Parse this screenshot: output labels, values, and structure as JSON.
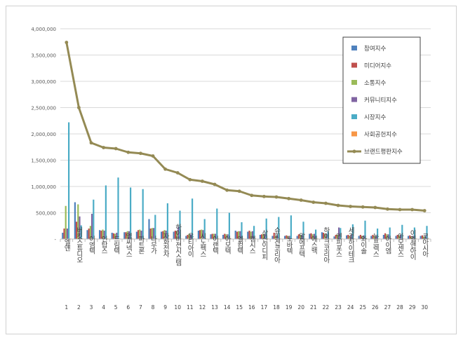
{
  "chart_data": {
    "type": "bar+line",
    "title": "",
    "xlabel": "",
    "ylabel": "",
    "ylim": [
      0,
      4000000
    ],
    "yticks": [
      0,
      500000,
      1000000,
      1500000,
      2000000,
      2500000,
      3000000,
      3500000,
      4000000
    ],
    "ytick_labels": [
      "-",
      "500,000",
      "1,000,000",
      "1,500,000",
      "2,000,000",
      "2,500,000",
      "3,000,000",
      "3,500,000",
      "4,000,000"
    ],
    "legend_position": "top-right",
    "categories": [
      "엘앤",
      "버킷스튜디오",
      "이엠텍",
      "인탑스",
      "드림텍",
      "엠씨넥스",
      "파트론",
      "나무가",
      "자화전자",
      "하이비젼시스템",
      "유티아이",
      "시노펙스",
      "이랜텍",
      "아모텍",
      "엘컴텍",
      "캠시스",
      "상신이디피",
      "슈피겐코리아",
      "노바텍",
      "알에프텍",
      "에스맥",
      "하이크코리아",
      "엔피포스",
      "세경하이테크",
      "와이솔",
      "뉴프렉스",
      "아이엠",
      "아모센스",
      "이엠앤아이",
      "코아시아"
    ],
    "ranks": [
      "1",
      "2",
      "3",
      "4",
      "5",
      "6",
      "7",
      "8",
      "9",
      "10",
      "11",
      "12",
      "13",
      "14",
      "15",
      "16",
      "17",
      "18",
      "19",
      "20",
      "21",
      "22",
      "23",
      "24",
      "25",
      "26",
      "27",
      "28",
      "29",
      "30"
    ],
    "series": [
      {
        "name": "참여지수",
        "color": "#4f81bd",
        "kind": "bar",
        "values": [
          120000,
          700000,
          170000,
          170000,
          120000,
          130000,
          140000,
          380000,
          140000,
          140000,
          60000,
          160000,
          90000,
          80000,
          160000,
          140000,
          80000,
          60000,
          60000,
          60000,
          100000,
          130000,
          50000,
          70000,
          60000,
          60000,
          80000,
          60000,
          60000,
          60000
        ]
      },
      {
        "name": "미디어지수",
        "color": "#c0504d",
        "kind": "bar",
        "values": [
          200000,
          330000,
          200000,
          160000,
          110000,
          130000,
          170000,
          200000,
          150000,
          160000,
          80000,
          170000,
          100000,
          100000,
          140000,
          160000,
          90000,
          120000,
          70000,
          90000,
          110000,
          120000,
          80000,
          80000,
          80000,
          80000,
          110000,
          80000,
          70000,
          70000
        ]
      },
      {
        "name": "소통지수",
        "color": "#9bbb59",
        "kind": "bar",
        "values": [
          630000,
          660000,
          250000,
          180000,
          100000,
          150000,
          180000,
          210000,
          170000,
          150000,
          100000,
          180000,
          100000,
          90000,
          150000,
          140000,
          100000,
          60000,
          60000,
          80000,
          90000,
          100000,
          80000,
          60000,
          60000,
          60000,
          90000,
          70000,
          50000,
          50000
        ]
      },
      {
        "name": "커뮤니티지수",
        "color": "#8064a2",
        "kind": "bar",
        "values": [
          200000,
          430000,
          480000,
          160000,
          120000,
          150000,
          160000,
          210000,
          160000,
          230000,
          90000,
          170000,
          100000,
          90000,
          150000,
          150000,
          100000,
          70000,
          60000,
          80000,
          100000,
          100000,
          220000,
          80000,
          70000,
          60000,
          90000,
          80000,
          60000,
          60000
        ]
      },
      {
        "name": "시장지수",
        "color": "#4bacc6",
        "kind": "bar",
        "values": [
          2220000,
          260000,
          750000,
          1020000,
          1170000,
          980000,
          950000,
          460000,
          680000,
          540000,
          770000,
          380000,
          580000,
          500000,
          320000,
          250000,
          390000,
          420000,
          450000,
          330000,
          180000,
          150000,
          210000,
          280000,
          350000,
          200000,
          220000,
          270000,
          220000,
          250000
        ]
      },
      {
        "name": "사회공헌지수",
        "color": "#f79646",
        "kind": "bar",
        "values": [
          10000,
          10000,
          10000,
          10000,
          10000,
          10000,
          10000,
          10000,
          10000,
          10000,
          10000,
          10000,
          10000,
          10000,
          10000,
          10000,
          10000,
          10000,
          10000,
          10000,
          10000,
          10000,
          10000,
          10000,
          10000,
          10000,
          10000,
          10000,
          10000,
          10000
        ]
      },
      {
        "name": "브랜드평판지수",
        "color": "#948a54",
        "kind": "line",
        "values": [
          3740000,
          2500000,
          1830000,
          1740000,
          1720000,
          1650000,
          1630000,
          1580000,
          1330000,
          1260000,
          1130000,
          1100000,
          1040000,
          930000,
          910000,
          830000,
          810000,
          800000,
          770000,
          740000,
          700000,
          680000,
          640000,
          620000,
          610000,
          600000,
          570000,
          560000,
          560000,
          540000
        ]
      }
    ]
  }
}
